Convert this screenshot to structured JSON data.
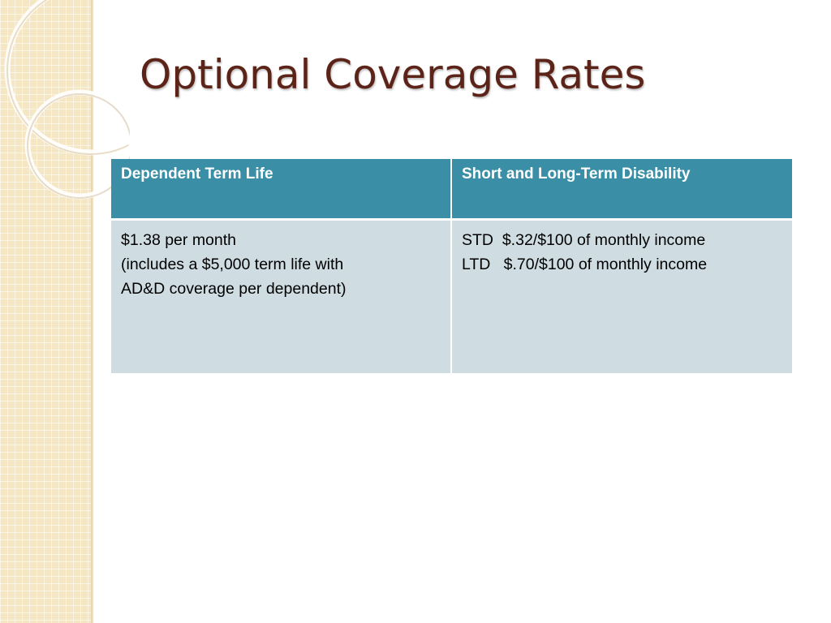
{
  "slide": {
    "title": "Optional Coverage Rates",
    "colors": {
      "title": "#5c2418",
      "header_bg": "#3a8fa6",
      "body_bg": "#cfdde2",
      "side_strip": "#f5e6c4"
    }
  },
  "table": {
    "headers": [
      "Dependent  Term Life",
      "Short and Long-Term Disability"
    ],
    "rows": [
      {
        "col1": [
          "$1.38 per month",
          "(includes a $5,000 term life with",
          "AD&D coverage per dependent)"
        ],
        "col2": [
          "STD  $.32/$100 of monthly income",
          "LTD   $.70/$100 of monthly income"
        ]
      }
    ]
  }
}
